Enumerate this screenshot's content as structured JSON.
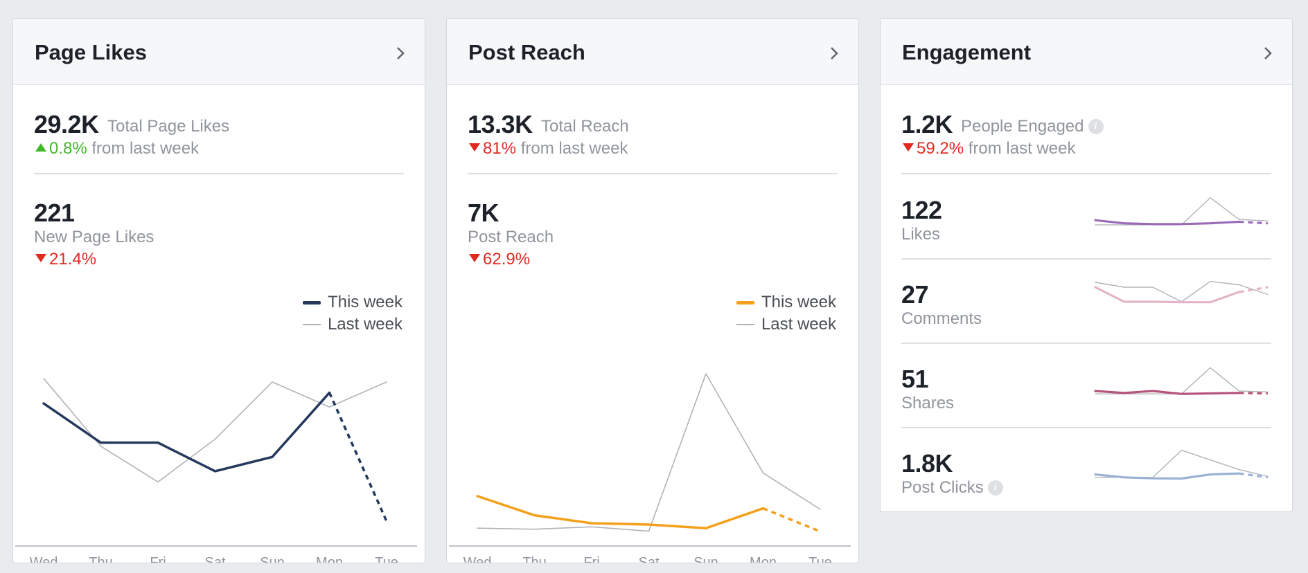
{
  "cards": {
    "page_likes": {
      "title": "Page Likes",
      "total_value": "29.2K",
      "total_label": "Total Page Likes",
      "total_change": "0.8%",
      "total_change_suffix": "from last week",
      "total_change_direction": "up",
      "sub_value": "221",
      "sub_label": "New Page Likes",
      "sub_change": "21.4%",
      "sub_change_direction": "down",
      "legend_this_week": "This week",
      "legend_last_week": "Last week",
      "this_week_color": "#23385b",
      "last_week_color": "#b0b3b8"
    },
    "post_reach": {
      "title": "Post Reach",
      "total_value": "13.3K",
      "total_label": "Total Reach",
      "total_change": "81%",
      "total_change_suffix": "from last week",
      "total_change_direction": "down",
      "sub_value": "7K",
      "sub_label": "Post Reach",
      "sub_change": "62.9%",
      "sub_change_direction": "down",
      "legend_this_week": "This week",
      "legend_last_week": "Last week",
      "this_week_color": "#f5a01a",
      "last_week_color": "#b0b3b8"
    },
    "engagement": {
      "title": "Engagement",
      "total_value": "1.2K",
      "total_label": "People Engaged",
      "total_change": "59.2%",
      "total_change_suffix": "from last week",
      "total_change_direction": "down",
      "info_icon": "info-icon",
      "rows": [
        {
          "value": "122",
          "label": "Likes",
          "color": "#9b6bb8"
        },
        {
          "value": "27",
          "label": "Comments",
          "color": "#e3b4c8"
        },
        {
          "value": "51",
          "label": "Shares",
          "color": "#b5537a"
        },
        {
          "value": "1.8K",
          "label": "Post Clicks",
          "color": "#9bb0d6"
        }
      ]
    }
  },
  "icons": {
    "chevron": "chevron-right-icon",
    "info": "info-icon"
  },
  "chart_data": [
    {
      "type": "line",
      "chart": "page_likes",
      "x": [
        "Wed",
        "Thu",
        "Fri",
        "Sat",
        "Sun",
        "Mon",
        "Tue"
      ],
      "series": [
        {
          "name": "This week",
          "values": [
            38,
            27,
            27,
            19,
            23,
            41,
            5
          ],
          "partial_last": true
        },
        {
          "name": "Last week",
          "values": [
            45,
            26,
            16,
            28,
            44,
            37,
            44
          ]
        }
      ],
      "ylim": [
        0,
        50
      ]
    },
    {
      "type": "line",
      "chart": "post_reach",
      "x": [
        "Wed",
        "Thu",
        "Fri",
        "Sat",
        "Sun",
        "Mon",
        "Tue"
      ],
      "series": [
        {
          "name": "This week",
          "values": [
            1300,
            720,
            480,
            440,
            330,
            930,
            230
          ],
          "partial_last": true
        },
        {
          "name": "Last week",
          "values": [
            330,
            300,
            370,
            240,
            5000,
            2000,
            900
          ]
        }
      ],
      "ylim": [
        0,
        5400
      ]
    },
    {
      "type": "line",
      "chart": "engagement_likes",
      "series": [
        {
          "name": "This week",
          "values": [
            15,
            11,
            10,
            10,
            11,
            13,
            11
          ],
          "partial_last": true
        },
        {
          "name": "Last week",
          "values": [
            9,
            9,
            9,
            9,
            44,
            16,
            14
          ]
        }
      ],
      "ylim": [
        0,
        50
      ]
    },
    {
      "type": "line",
      "chart": "engagement_comments",
      "series": [
        {
          "name": "This week",
          "values": [
            6,
            3,
            3,
            2.9,
            2.9,
            5,
            6
          ],
          "partial_last": true
        },
        {
          "name": "Last week",
          "values": [
            7,
            6,
            6,
            3,
            7.2,
            6.5,
            4.5
          ]
        }
      ],
      "ylim": [
        0,
        8
      ]
    },
    {
      "type": "line",
      "chart": "engagement_shares",
      "series": [
        {
          "name": "This week",
          "values": [
            10,
            8,
            10,
            7,
            7.5,
            8,
            7.5
          ],
          "partial_last": true
        },
        {
          "name": "Last week",
          "values": [
            7,
            7,
            7,
            7,
            34,
            10,
            9
          ]
        }
      ],
      "ylim": [
        0,
        40
      ]
    },
    {
      "type": "line",
      "chart": "engagement_post_clicks",
      "series": [
        {
          "name": "This week",
          "values": [
            110,
            80,
            70,
            68,
            110,
            120,
            80
          ],
          "partial_last": true
        },
        {
          "name": "Last week",
          "values": [
            80,
            80,
            80,
            360,
            260,
            160,
            90
          ]
        }
      ],
      "ylim": [
        0,
        400
      ]
    }
  ]
}
